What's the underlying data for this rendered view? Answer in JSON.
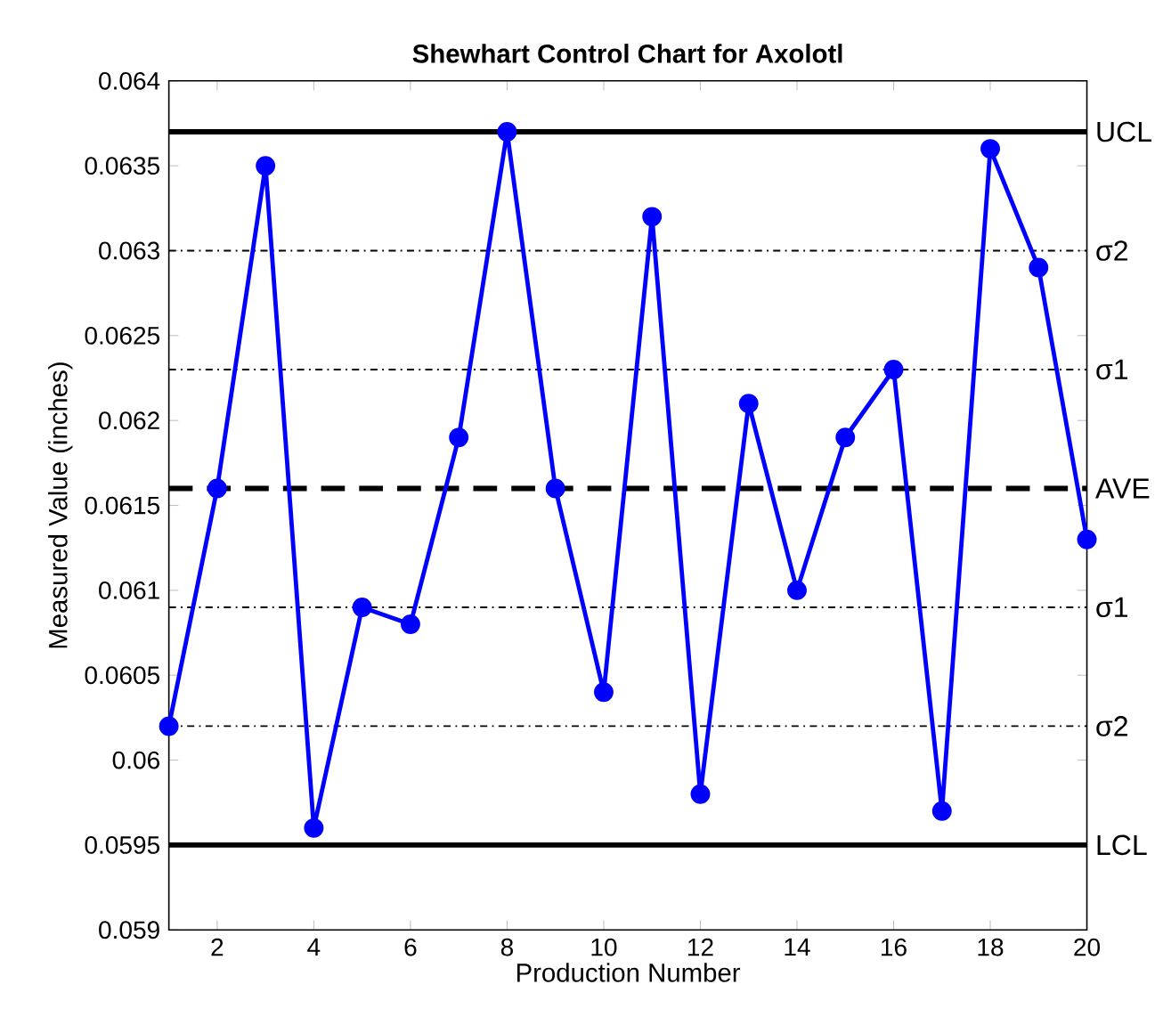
{
  "chart_data": {
    "type": "line",
    "title": "Shewhart Control Chart for Axolotl",
    "xlabel": "Production Number",
    "ylabel": "Measured Value (inches)",
    "x": [
      1,
      2,
      3,
      4,
      5,
      6,
      7,
      8,
      9,
      10,
      11,
      12,
      13,
      14,
      15,
      16,
      17,
      18,
      19,
      20
    ],
    "series": [
      {
        "color": "#0000ff",
        "values": [
          0.0602,
          0.0616,
          0.0635,
          0.0596,
          0.0609,
          0.0608,
          0.0619,
          0.0637,
          0.0616,
          0.0604,
          0.0632,
          0.0598,
          0.0621,
          0.061,
          0.0619,
          0.0623,
          0.0597,
          0.0636,
          0.0629,
          0.0613
        ]
      }
    ],
    "marker": "circle",
    "line_style": "solid",
    "grid": false,
    "xlim": [
      1,
      20
    ],
    "xticks": [
      2,
      4,
      6,
      8,
      10,
      12,
      14,
      16,
      18,
      20
    ],
    "ylim": [
      0.059,
      0.064
    ],
    "yticks": [
      0.059,
      0.0595,
      0.06,
      0.0605,
      0.061,
      0.0615,
      0.062,
      0.0625,
      0.063,
      0.0635,
      0.064
    ],
    "ref_lines": [
      {
        "axis": "y",
        "value": 0.0637,
        "label": "UCL",
        "color": "#000000",
        "line_style": "solid"
      },
      {
        "axis": "y",
        "value": 0.063,
        "label": "σ2",
        "color": "#000000",
        "line_style": "dashdot"
      },
      {
        "axis": "y",
        "value": 0.0623,
        "label": "σ1",
        "color": "#000000",
        "line_style": "dashdot"
      },
      {
        "axis": "y",
        "value": 0.0616,
        "label": "AVE",
        "color": "#000000",
        "line_style": "dashed"
      },
      {
        "axis": "y",
        "value": 0.0609,
        "label": "σ1",
        "color": "#000000",
        "line_style": "dashdot"
      },
      {
        "axis": "y",
        "value": 0.0602,
        "label": "σ2",
        "color": "#000000",
        "line_style": "dashdot"
      },
      {
        "axis": "y",
        "value": 0.0595,
        "label": "LCL",
        "color": "#000000",
        "line_style": "solid"
      }
    ]
  }
}
